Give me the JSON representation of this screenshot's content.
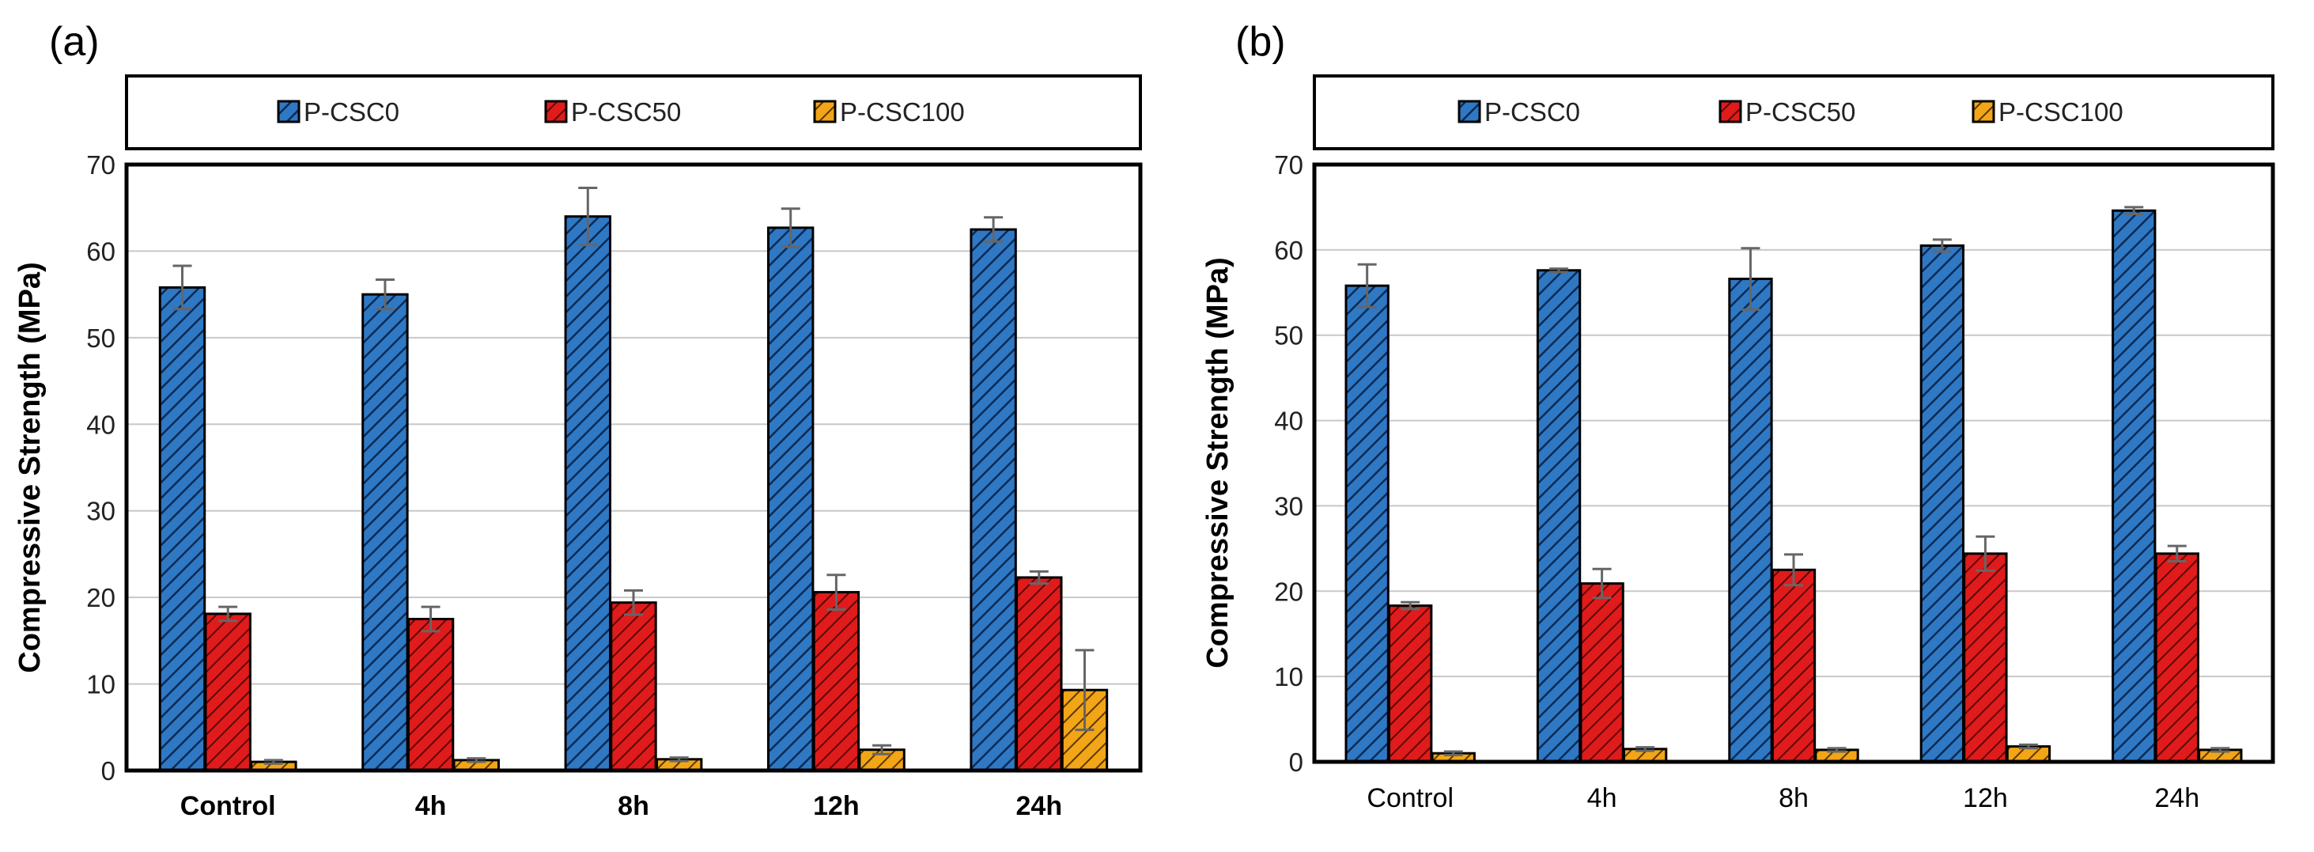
{
  "chart_data": [
    {
      "type": "bar",
      "panel_label": "(a)",
      "categories": [
        "Control",
        "4h",
        "8h",
        "12h",
        "24h"
      ],
      "series": [
        {
          "name": "P-CSC0",
          "color": "#2f78c4",
          "values": [
            55.8,
            55.0,
            64.0,
            62.7,
            62.5
          ],
          "errors": [
            2.5,
            1.7,
            3.3,
            2.2,
            1.4
          ]
        },
        {
          "name": "P-CSC50",
          "color": "#e01b1b",
          "values": [
            18.1,
            17.5,
            19.4,
            20.6,
            22.3
          ],
          "errors": [
            0.8,
            1.4,
            1.4,
            2.0,
            0.7
          ]
        },
        {
          "name": "P-CSC100",
          "color": "#f2a516",
          "values": [
            1.0,
            1.2,
            1.3,
            2.4,
            9.3
          ],
          "errors": [
            0.2,
            0.2,
            0.2,
            0.5,
            4.6
          ]
        }
      ],
      "ylabel": "Compressive Strength (MPa)",
      "xlabel": "",
      "ylim": [
        0,
        70
      ],
      "yticks": [
        "0",
        "10",
        "20",
        "30",
        "40",
        "50",
        "60",
        "70"
      ],
      "category_label_weight": "bold",
      "legend_position": "top",
      "grid": true
    },
    {
      "type": "bar",
      "panel_label": "(b)",
      "categories": [
        "Control",
        "4h",
        "8h",
        "12h",
        "24h"
      ],
      "series": [
        {
          "name": "P-CSC0",
          "color": "#2f78c4",
          "values": [
            55.8,
            57.6,
            56.6,
            60.5,
            64.6
          ],
          "errors": [
            2.5,
            0.2,
            3.6,
            0.7,
            0.4
          ]
        },
        {
          "name": "P-CSC50",
          "color": "#e01b1b",
          "values": [
            18.3,
            20.9,
            22.5,
            24.4,
            24.4
          ],
          "errors": [
            0.4,
            1.7,
            1.8,
            2.0,
            0.9
          ]
        },
        {
          "name": "P-CSC100",
          "color": "#f2a516",
          "values": [
            1.0,
            1.5,
            1.4,
            1.8,
            1.4
          ],
          "errors": [
            0.2,
            0.2,
            0.2,
            0.2,
            0.2
          ]
        }
      ],
      "ylabel": "Compressive Strength (MPa)",
      "xlabel": "",
      "ylim": [
        0,
        70
      ],
      "yticks": [
        "0",
        "10",
        "20",
        "30",
        "40",
        "50",
        "60",
        "70"
      ],
      "category_label_weight": "normal",
      "legend_position": "top",
      "grid": true
    }
  ]
}
